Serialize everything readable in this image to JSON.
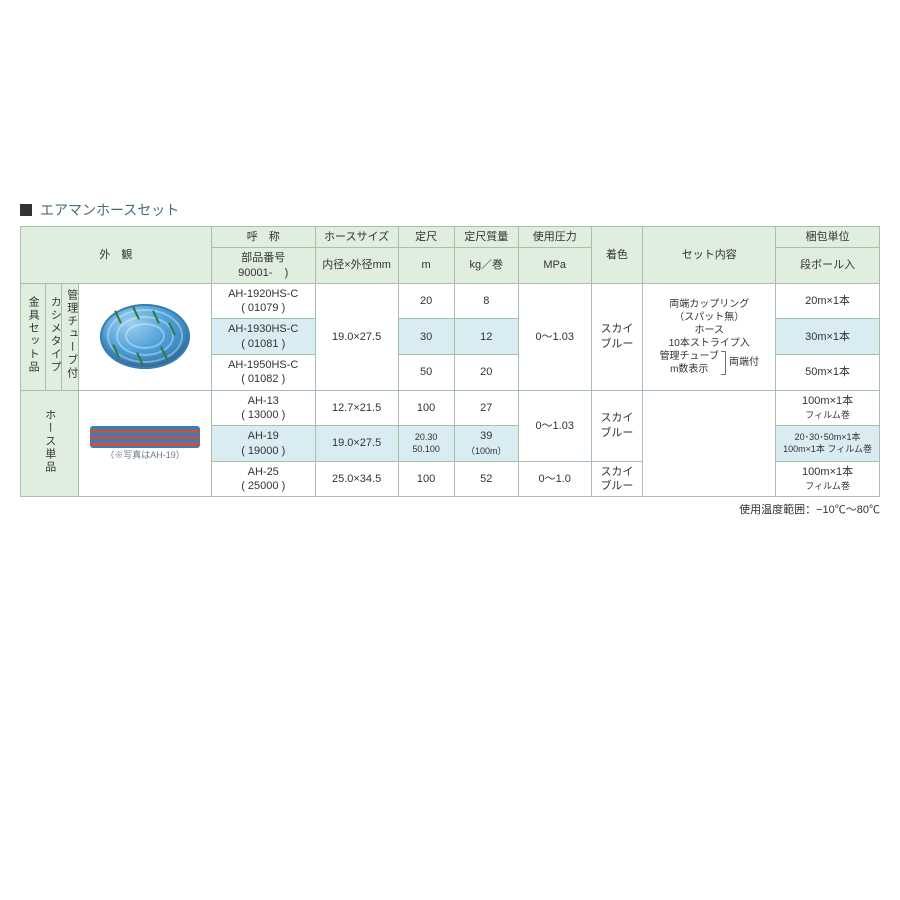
{
  "title": "エアマンホースセット",
  "footnote": "使用温度範囲：−10℃〜80℃",
  "headers": {
    "appearance": "外　観",
    "name": "呼　称",
    "part_no_sub": "部品番号",
    "part_no_prefix": "90001-",
    "hose_size": "ホースサイズ",
    "hose_size_sub": "内径×外径mm",
    "length": "定尺",
    "length_unit": "m",
    "mass": "定尺質量",
    "mass_unit": "kg／巻",
    "pressure": "使用圧力",
    "pressure_unit": "MPa",
    "color": "着色",
    "set": "セット内容",
    "packaging": "梱包単位",
    "packaging_sub": "段ボール入"
  },
  "group_labels": {
    "fitting_set": "金具セット品",
    "fitting_sub1": "カシメタイプ",
    "fitting_sub2": "管理チューブ付",
    "hose_only": "ホース単品"
  },
  "caption_hose_flat": "（※写真はAH-19）",
  "set_contents": {
    "line1": "両端カップリング",
    "line2": "（スパット無）",
    "line3": "ホース",
    "line4": "10本ストライプ入",
    "line5": "管理チューブ",
    "line6": "m数表示",
    "bracket_label": "両端付"
  },
  "rows_top": [
    {
      "name": "AH-1920HS-C",
      "part": "( 01079 )",
      "size": "",
      "len": "20",
      "mass": "8",
      "pack": "20m×1本",
      "hl": false
    },
    {
      "name": "AH-1930HS-C",
      "part": "( 01081 )",
      "size": "19.0×27.5",
      "len": "30",
      "mass": "12",
      "pack": "30m×1本",
      "hl": true
    },
    {
      "name": "AH-1950HS-C",
      "part": "( 01082 )",
      "size": "",
      "len": "50",
      "mass": "20",
      "pack": "50m×1本",
      "hl": false
    }
  ],
  "top_shared": {
    "pressure": "0〜1.03",
    "color": "スカイ\nブルー",
    "size_shared": "19.0×27.5"
  },
  "rows_bottom": [
    {
      "name": "AH-13",
      "part": "( 13000 )",
      "size": "12.7×21.5",
      "len": "100",
      "mass": "27",
      "pressure": "",
      "color": "",
      "pack": "100m×1本",
      "pack_sub": "フィルム巻",
      "hl": false
    },
    {
      "name": "AH-19",
      "part": "( 19000 )",
      "size": "19.0×27.5",
      "len": "20.30\n50.100",
      "mass": "39",
      "mass_sub": "（100m）",
      "pressure": "0〜1.03",
      "color": "スカイ\nブルー",
      "pack": "20･30･50m×1本",
      "pack_sub": "100m×1本 フィルム巻",
      "hl": true
    },
    {
      "name": "AH-25",
      "part": "( 25000 )",
      "size": "25.0×34.5",
      "len": "100",
      "mass": "52",
      "pressure": "0〜1.0",
      "color": "スカイ\nブルー",
      "pack": "100m×1本",
      "pack_sub": "フィルム巻",
      "hl": false
    }
  ],
  "colwidths": {
    "group1": 24,
    "group2": 16,
    "appearance": 130,
    "name": 100,
    "size": 80,
    "len": 55,
    "mass": 62,
    "pressure": 70,
    "color": 50,
    "set": 130,
    "pack": 100
  },
  "styling": {
    "header_bg": "#dfeedf",
    "highlight_bg": "#d8ecf2",
    "border_color": "#a8c0a8",
    "title_color": "#4a6a7a",
    "body_font_size": 11
  }
}
